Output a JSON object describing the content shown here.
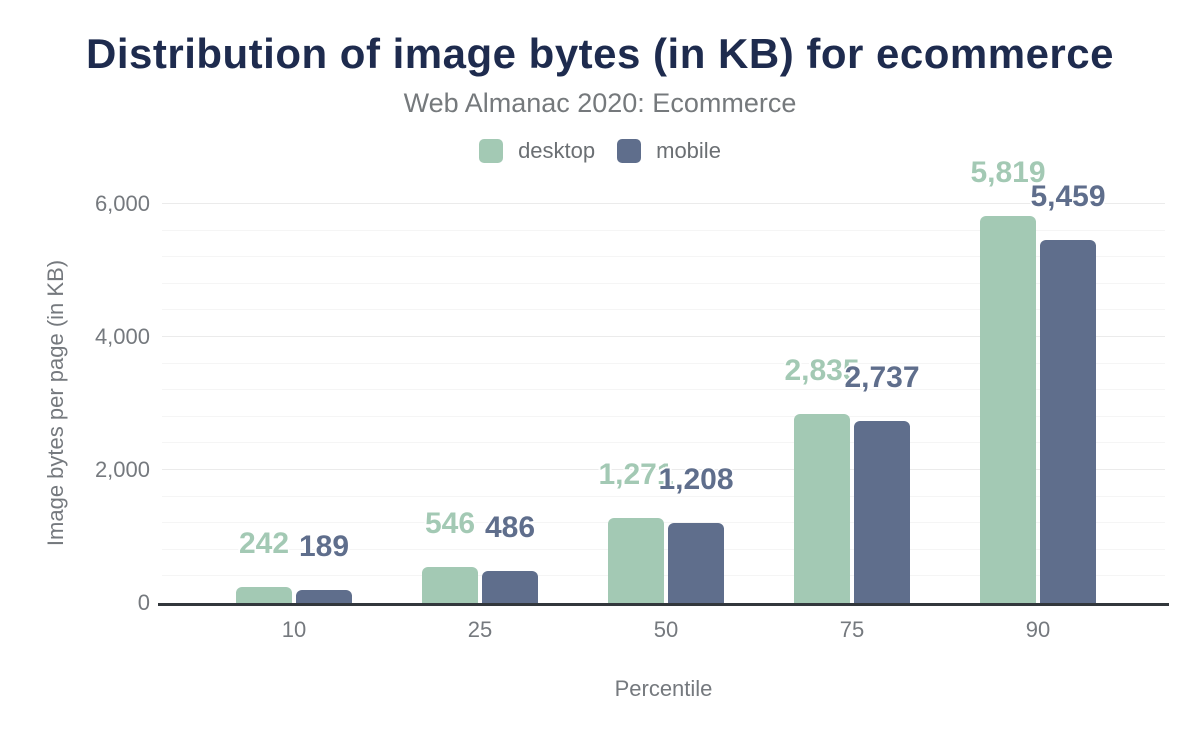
{
  "title": "Distribution of image bytes (in KB) for ecommerce",
  "subtitle": "Web Almanac 2020: Ecommerce",
  "legend": {
    "items": [
      {
        "label": "desktop",
        "color": "#a3c9b4"
      },
      {
        "label": "mobile",
        "color": "#5f6e8c"
      }
    ]
  },
  "colors": {
    "title": "#1e2b4e",
    "muted_text": "#75797e",
    "axis_line": "#32373c",
    "grid_major": "#ebebeb",
    "grid_minor": "#f5f5f5",
    "desktop": "#a3c9b4",
    "mobile": "#5f6e8c"
  },
  "chart_data": {
    "type": "bar",
    "title": "Distribution of image bytes (in KB) for ecommerce",
    "subtitle": "Web Almanac 2020: Ecommerce",
    "categories": [
      "10",
      "25",
      "50",
      "75",
      "90"
    ],
    "series": [
      {
        "name": "desktop",
        "color": "#a3c9b4",
        "values": [
          242,
          546,
          1271,
          2835,
          5819
        ],
        "labels": [
          "242",
          "546",
          "1,271",
          "2,835",
          "5,819"
        ]
      },
      {
        "name": "mobile",
        "color": "#5f6e8c",
        "values": [
          189,
          486,
          1208,
          2737,
          5459
        ],
        "labels": [
          "189",
          "486",
          "1,208",
          "2,737",
          "5,459"
        ]
      }
    ],
    "xlabel": "Percentile",
    "ylabel": "Image bytes per page (in KB)",
    "ylim": [
      0,
      6000
    ],
    "yticks": [
      0,
      2000,
      4000,
      6000
    ],
    "ytick_labels": [
      "0",
      "2,000",
      "4,000",
      "6,000"
    ],
    "minor_grid_step": 400,
    "major_grid_step": 2000,
    "grid": true,
    "legend_position": "top",
    "data_labels": true
  }
}
